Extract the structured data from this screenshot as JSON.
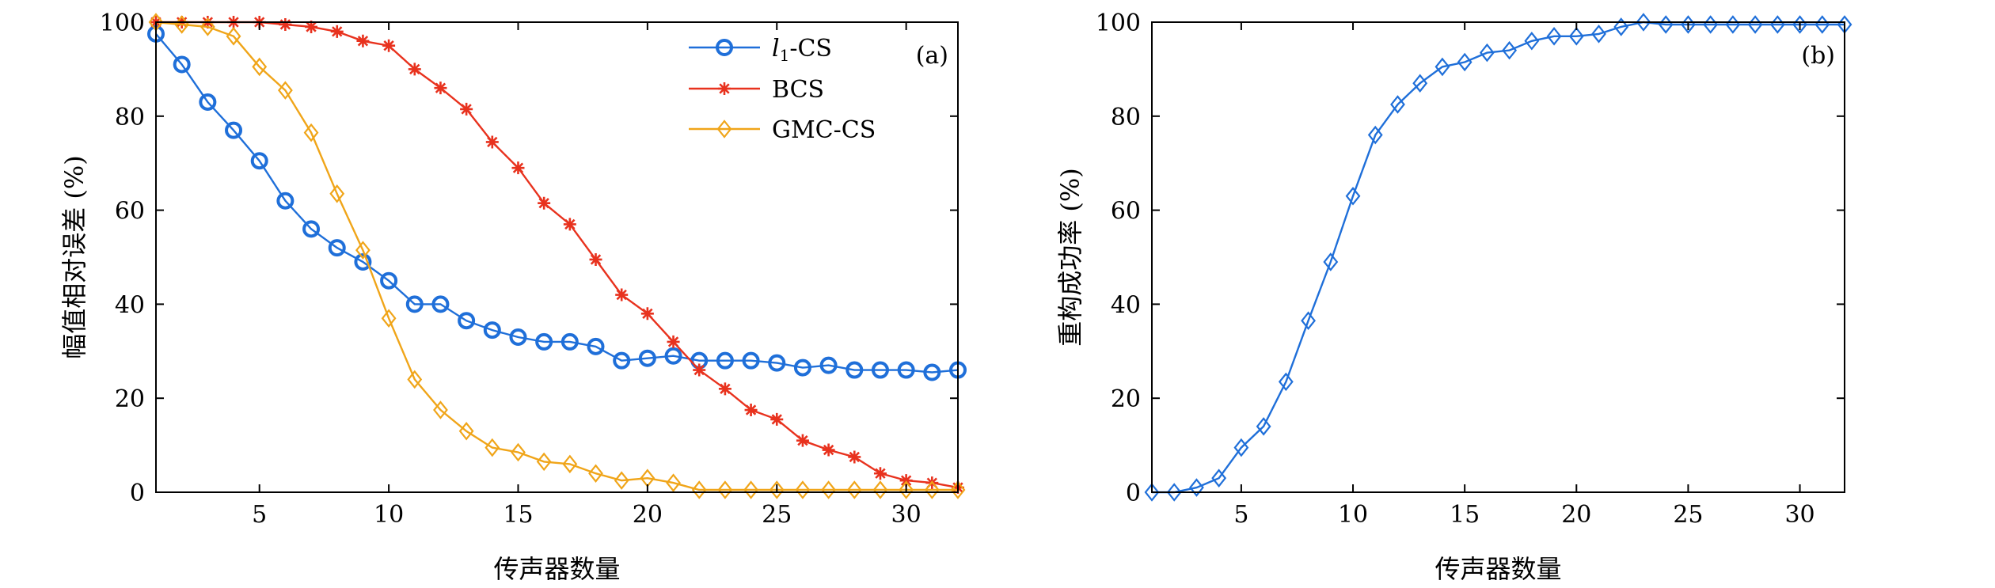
{
  "chart_data": [
    {
      "type": "line",
      "panel_label": "(a)",
      "xlabel": "传声器数量",
      "ylabel": "幅值相对误差 (%)",
      "xlim": [
        1,
        32
      ],
      "ylim": [
        0,
        100
      ],
      "xticks": [
        5,
        10,
        15,
        20,
        25,
        30
      ],
      "yticks": [
        0,
        20,
        40,
        60,
        80,
        100
      ],
      "grid": false,
      "legend_position": "top-right",
      "x": [
        1,
        2,
        3,
        4,
        5,
        6,
        7,
        8,
        9,
        10,
        11,
        12,
        13,
        14,
        15,
        16,
        17,
        18,
        19,
        20,
        21,
        22,
        23,
        24,
        25,
        26,
        27,
        28,
        29,
        30,
        31,
        32
      ],
      "series": [
        {
          "name_main": "l",
          "name_sub": "1",
          "name_suffix": "-CS",
          "color": "#1f6fd9",
          "marker": "circle",
          "values": [
            97.5,
            91,
            83,
            77,
            70.5,
            62,
            56,
            52,
            49,
            45,
            40,
            40,
            36.5,
            34.5,
            33,
            32,
            32,
            31,
            28,
            28.5,
            29,
            28,
            28,
            28,
            27.5,
            26.5,
            27,
            26,
            26,
            26,
            25.5,
            26
          ]
        },
        {
          "name": "BCS",
          "color": "#e8321e",
          "marker": "star",
          "values": [
            100,
            100,
            100,
            100,
            100,
            99.5,
            99,
            98,
            96,
            95,
            90,
            86,
            81.5,
            74.5,
            69,
            61.5,
            57,
            49.5,
            42,
            38,
            32,
            26,
            22,
            17.5,
            15.5,
            11,
            9,
            7.5,
            4,
            2.5,
            2,
            1
          ]
        },
        {
          "name": "GMC-CS",
          "color": "#f0a519",
          "marker": "diamond",
          "values": [
            100,
            99.5,
            99,
            97,
            90.5,
            85.5,
            76.5,
            63.5,
            51.5,
            37,
            24,
            17.5,
            13,
            9.5,
            8.5,
            6.5,
            6,
            4,
            2.5,
            3,
            2,
            0.5,
            0.5,
            0.5,
            0.5,
            0.5,
            0.5,
            0.5,
            0.5,
            0.5,
            0.5,
            0.5
          ]
        }
      ]
    },
    {
      "type": "line",
      "panel_label": "(b)",
      "xlabel": "传声器数量",
      "ylabel": "重构成功率 (%)",
      "xlim": [
        1,
        32
      ],
      "ylim": [
        0,
        100
      ],
      "xticks": [
        5,
        10,
        15,
        20,
        25,
        30
      ],
      "yticks": [
        0,
        20,
        40,
        60,
        80,
        100
      ],
      "grid": false,
      "x": [
        1,
        2,
        3,
        4,
        5,
        6,
        7,
        8,
        9,
        10,
        11,
        12,
        13,
        14,
        15,
        16,
        17,
        18,
        19,
        20,
        21,
        22,
        23,
        24,
        25,
        26,
        27,
        28,
        29,
        30,
        31,
        32
      ],
      "series": [
        {
          "color": "#1f6fd9",
          "marker": "diamond",
          "values": [
            0,
            0,
            1,
            3,
            9.5,
            14,
            23.5,
            36.5,
            49,
            63,
            76,
            82.5,
            87,
            90.5,
            91.5,
            93.5,
            94,
            96,
            97,
            97,
            97.5,
            99,
            100,
            99.5,
            99.5,
            99.5,
            99.5,
            99.5,
            99.5,
            99.5,
            99.5,
            99.5
          ]
        }
      ]
    }
  ]
}
